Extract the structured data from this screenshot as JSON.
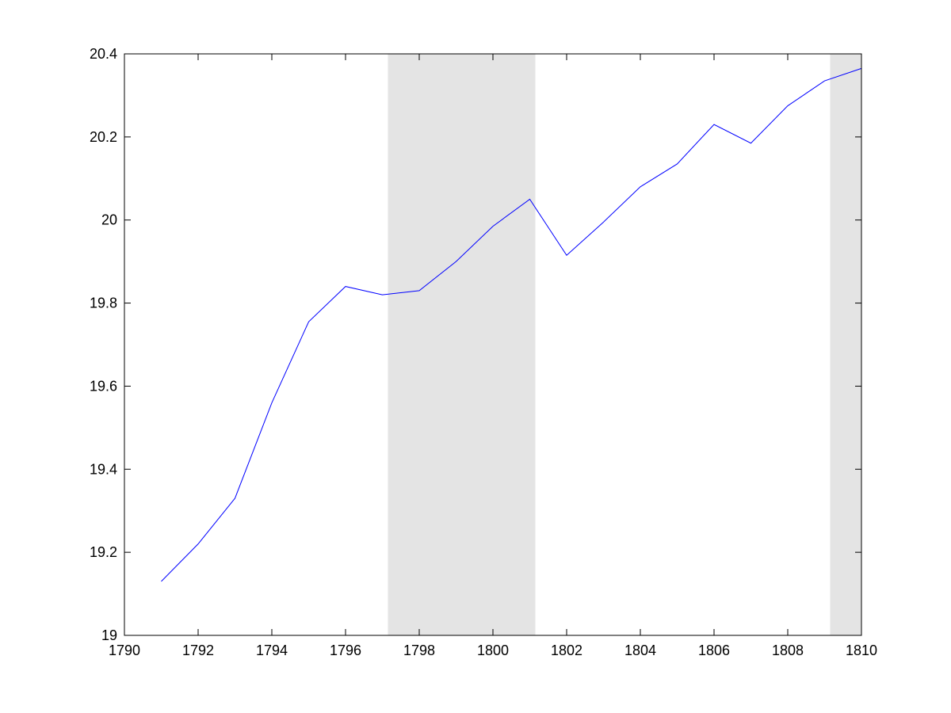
{
  "chart_data": {
    "type": "line",
    "title": "",
    "xlabel": "",
    "ylabel": "",
    "xlim": [
      1790,
      1810
    ],
    "ylim": [
      19,
      20.4
    ],
    "x_ticks": [
      1790,
      1792,
      1794,
      1796,
      1798,
      1800,
      1802,
      1804,
      1806,
      1808,
      1810
    ],
    "y_ticks": [
      19,
      19.2,
      19.4,
      19.6,
      19.8,
      20,
      20.2,
      20.4
    ],
    "x_tick_labels": [
      "1790",
      "1792",
      "1794",
      "1796",
      "1798",
      "1800",
      "1802",
      "1804",
      "1806",
      "1808",
      "1810"
    ],
    "y_tick_labels": [
      "19",
      "19.2",
      "19.4",
      "19.6",
      "19.8",
      "20",
      "20.2",
      "20.4"
    ],
    "grid": false,
    "shaded_periods": [
      {
        "start": 1797.15,
        "end": 1801.15
      },
      {
        "start": 1809.15,
        "end": 1810
      }
    ],
    "series": [
      {
        "x": [
          1791,
          1792,
          1793,
          1794,
          1795,
          1796,
          1797,
          1798,
          1799,
          1800,
          1801,
          1802,
          1803,
          1804,
          1805,
          1806,
          1807,
          1808,
          1809,
          1810
        ],
        "values": [
          19.13,
          19.22,
          19.33,
          19.56,
          19.755,
          19.84,
          19.82,
          19.83,
          19.9,
          19.985,
          20.05,
          19.915,
          19.995,
          20.08,
          20.135,
          20.23,
          20.185,
          20.275,
          20.335,
          20.365
        ]
      }
    ],
    "colors": {
      "line": "#0000ff",
      "shade": "#e4e4e4",
      "axis": "#000000",
      "background": "#ffffff"
    }
  }
}
